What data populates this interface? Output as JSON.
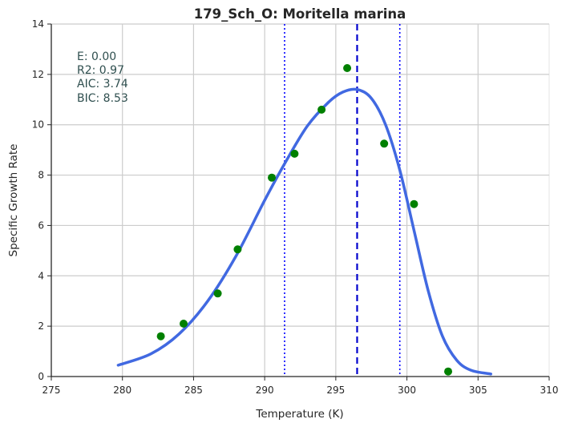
{
  "chart_data": {
    "type": "scatter",
    "title": "179_Sch_O: Moritella marina",
    "xlabel": "Temperature (K)",
    "ylabel": "Specific Growth Rate",
    "xlim": [
      275,
      310
    ],
    "ylim": [
      0,
      14
    ],
    "xticks": [
      "275",
      "280",
      "285",
      "290",
      "295",
      "300",
      "305",
      "310"
    ],
    "yticks": [
      "0",
      "2",
      "4",
      "6",
      "8",
      "10",
      "12",
      "14"
    ],
    "grid": true,
    "points": {
      "x": [
        282.7,
        284.3,
        286.7,
        288.1,
        290.5,
        292.1,
        294.0,
        295.8,
        298.4,
        300.5,
        302.9
      ],
      "y": [
        1.6,
        2.1,
        3.3,
        5.05,
        7.9,
        8.85,
        10.6,
        12.25,
        9.25,
        6.85,
        0.2
      ],
      "color": "#008000"
    },
    "fit_curve": {
      "x": [
        279.7,
        282.0,
        284.0,
        286.0,
        288.0,
        290.0,
        291.5,
        293.0,
        294.5,
        295.5,
        296.5,
        297.5,
        298.5,
        299.5,
        300.5,
        301.5,
        302.5,
        303.5,
        304.5,
        305.9
      ],
      "y": [
        0.45,
        0.9,
        1.7,
        3.0,
        4.8,
        7.0,
        8.55,
        9.95,
        10.9,
        11.3,
        11.4,
        11.05,
        10.0,
        8.2,
        5.8,
        3.4,
        1.6,
        0.65,
        0.25,
        0.1
      ],
      "color": "#4169e1"
    },
    "vlines": [
      {
        "x": 291.4,
        "style": "dotted",
        "color": "#0000ff"
      },
      {
        "x": 296.5,
        "style": "dashed",
        "color": "#0000cd"
      },
      {
        "x": 299.5,
        "style": "dotted",
        "color": "#0000ff"
      }
    ],
    "stats": {
      "lines": [
        "E:  0.00",
        "R2:  0.97",
        "AIC: 3.74",
        "BIC: 8.53"
      ],
      "color": "#2f4f4f"
    }
  }
}
